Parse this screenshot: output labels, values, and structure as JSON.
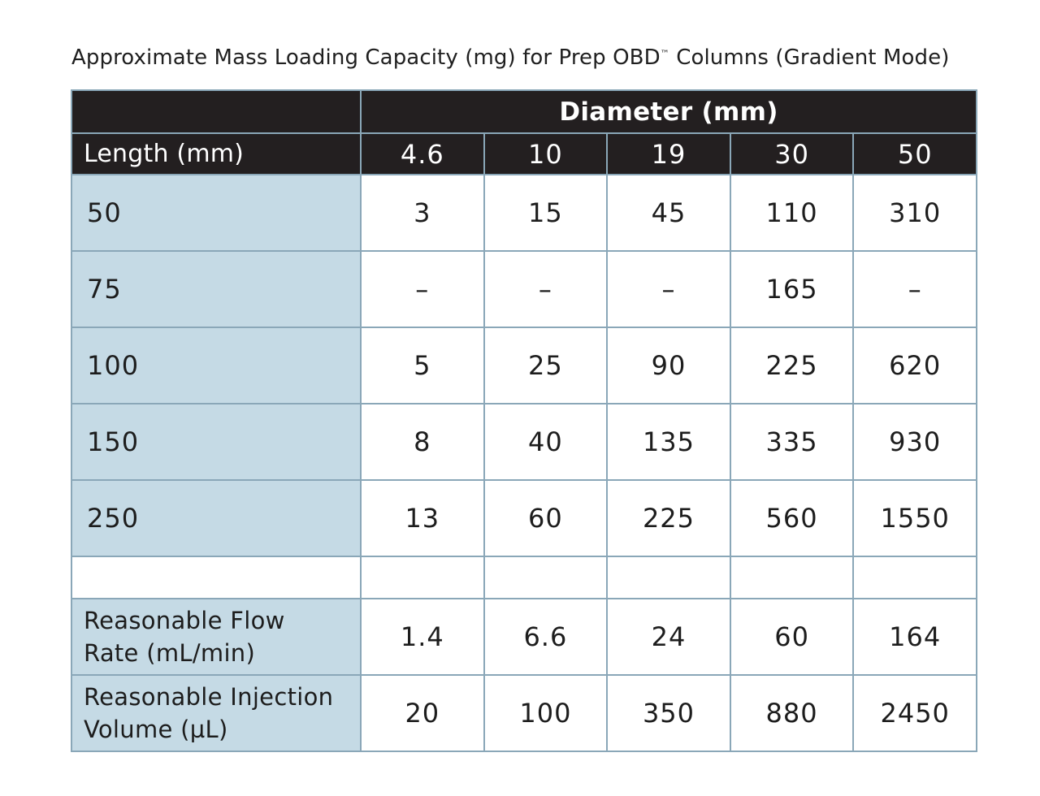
{
  "title": {
    "main": "Approximate Mass Loading Capacity (mg) for Prep OBD",
    "tm": "™",
    "rest": " Columns (Gradient Mode)"
  },
  "header": {
    "diameter_label": "Diameter (mm)",
    "length_label": "Length (mm)",
    "diameters": [
      "4.6",
      "10",
      "19",
      "30",
      "50"
    ]
  },
  "rows": [
    {
      "label": "50",
      "values": [
        "3",
        "15",
        "45",
        "110",
        "310"
      ]
    },
    {
      "label": "75",
      "values": [
        "–",
        "–",
        "–",
        "165",
        "–"
      ]
    },
    {
      "label": "100",
      "values": [
        "5",
        "25",
        "90",
        "225",
        "620"
      ]
    },
    {
      "label": "150",
      "values": [
        "8",
        "40",
        "135",
        "335",
        "930"
      ]
    },
    {
      "label": "250",
      "values": [
        "13",
        "60",
        "225",
        "560",
        "1550"
      ]
    }
  ],
  "flow_rate": {
    "label_line1": "Reasonable Flow",
    "label_line2": "Rate (mL/min)",
    "values": [
      "1.4",
      "6.6",
      "24",
      "60",
      "164"
    ]
  },
  "injection_volume": {
    "label_line1": "Reasonable Injection",
    "label_line2": "Volume (µL)",
    "values": [
      "20",
      "100",
      "350",
      "880",
      "2450"
    ]
  },
  "colors": {
    "header_bg": "#231f20",
    "row_label_bg": "#c5dae5",
    "border": "#8aa7b8"
  }
}
